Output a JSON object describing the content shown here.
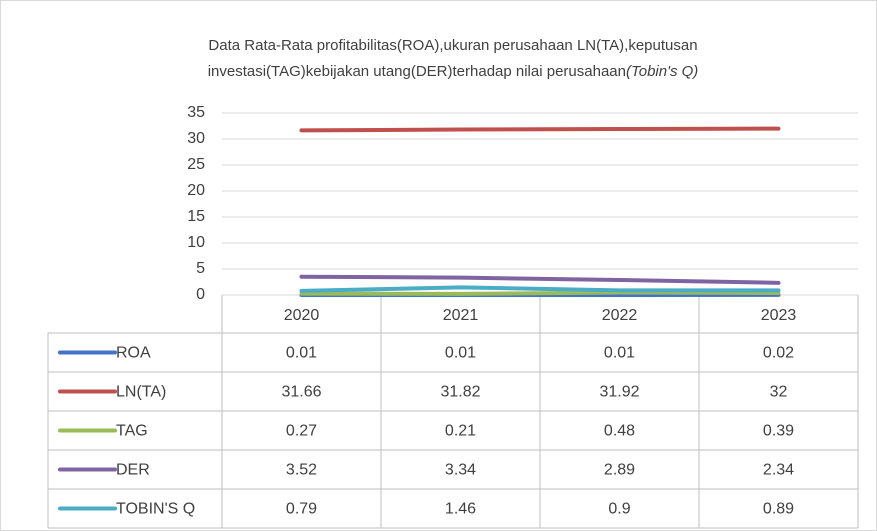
{
  "chart_data": {
    "type": "line",
    "title": [
      "Data Rata-Rata profitabilitas(ROA),ukuran perusahaan LN(TA),keputusan",
      "investasi(TAG)kebijakan utang(DER)terhadap nilai perusahaan",
      "(Tobin's Q)"
    ],
    "categories": [
      "2020",
      "2021",
      "2022",
      "2023"
    ],
    "series": [
      {
        "name": "ROA",
        "color": "#4472c4",
        "values": [
          0.01,
          0.01,
          0.01,
          0.02
        ]
      },
      {
        "name": "LN(TA)",
        "color": "#c0504d",
        "values": [
          31.66,
          31.82,
          31.92,
          32
        ]
      },
      {
        "name": "TAG",
        "color": "#9bbb59",
        "values": [
          0.27,
          0.21,
          0.48,
          0.39
        ]
      },
      {
        "name": "DER",
        "color": "#8064a2",
        "values": [
          3.52,
          3.34,
          2.89,
          2.34
        ]
      },
      {
        "name": "TOBIN'S Q",
        "color": "#4bacc6",
        "values": [
          0.79,
          1.46,
          0.9,
          0.89
        ]
      }
    ],
    "ylim": [
      0,
      35
    ],
    "yticks": [
      0,
      5,
      10,
      15,
      20,
      25,
      30,
      35
    ],
    "grid": true,
    "data_table": true
  }
}
